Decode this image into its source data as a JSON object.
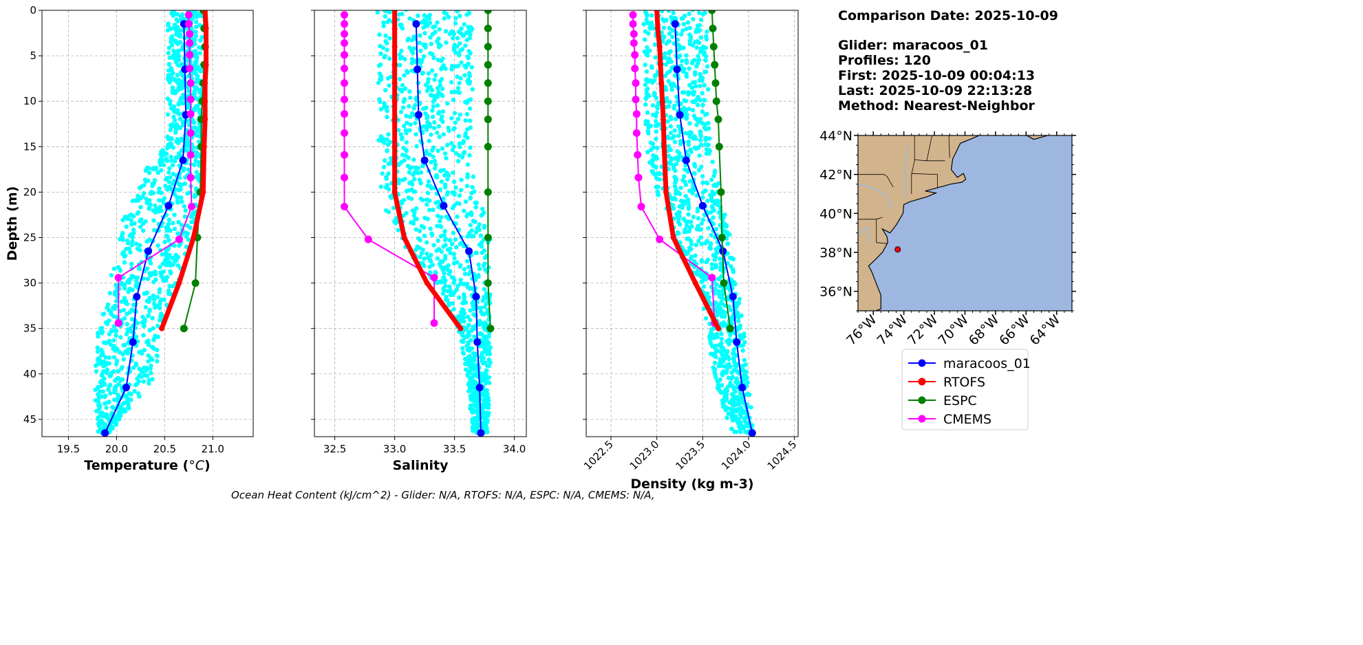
{
  "info": {
    "comparison_date": "Comparison Date: 2025-10-09",
    "glider": "Glider: maracoos_01",
    "profiles": "Profiles: 120",
    "first": "First: 2025-10-09 00:04:13",
    "last": "Last: 2025-10-09 22:13:28",
    "method": "Method: Nearest-Neighbor"
  },
  "footer": "Ocean Heat Content (kJ/cm^2) - Glider: N/A,  RTOFS: N/A,  ESPC: N/A,  CMEMS: N/A,",
  "legend": {
    "placement": "below-map",
    "items": [
      {
        "label": "maracoos_01",
        "color": "#0000ff"
      },
      {
        "label": "RTOFS",
        "color": "#ff0000"
      },
      {
        "label": "ESPC",
        "color": "#008000"
      },
      {
        "label": "CMEMS",
        "color": "#ff00ff"
      }
    ]
  },
  "chart_data": {
    "type": "line",
    "ylabel": "Depth (m)",
    "ylim": [
      46.9,
      0
    ],
    "yticks": [
      0,
      5,
      10,
      15,
      20,
      25,
      30,
      35,
      40,
      45
    ],
    "grid": true,
    "raw_color": "#00ffff",
    "panels": [
      {
        "name": "temperature",
        "xlabel_main": "Temperature (",
        "xlabel_unit": "°C",
        "xlabel_close": ")",
        "xlim": [
          19.225,
          21.42
        ],
        "xticks": [
          "19.5",
          "20.0",
          "20.5",
          "21.0"
        ],
        "tick_rotation": 0,
        "raw_envelope": [
          [
            0,
            20.53,
            20.9
          ],
          [
            15,
            20.53,
            20.9
          ],
          [
            17,
            20.32,
            20.9
          ],
          [
            20,
            20.22,
            20.88
          ],
          [
            23,
            20.05,
            20.85
          ],
          [
            27,
            20.0,
            20.75
          ],
          [
            31,
            19.9,
            20.62
          ],
          [
            35,
            19.8,
            20.45
          ],
          [
            40,
            19.78,
            20.42
          ],
          [
            43,
            19.78,
            20.2
          ],
          [
            46.5,
            19.8,
            19.92
          ]
        ],
        "series": [
          {
            "name": "maracoos_01",
            "depth": [
              1.5,
              6.5,
              11.5,
              16.5,
              21.5,
              26.5,
              31.5,
              36.5,
              41.5,
              46.5
            ],
            "values": [
              20.7,
              20.71,
              20.72,
              20.69,
              20.54,
              20.33,
              20.21,
              20.17,
              20.1,
              19.88
            ]
          },
          {
            "name": "RTOFS",
            "depth": [
              0,
              2,
              4,
              6,
              8,
              10,
              12,
              15,
              20,
              25,
              30,
              35
            ],
            "values": [
              20.92,
              20.93,
              20.93,
              20.93,
              20.92,
              20.92,
              20.92,
              20.91,
              20.9,
              20.8,
              20.65,
              20.47
            ]
          },
          {
            "name": "ESPC",
            "depth": [
              0,
              2,
              4,
              6,
              8,
              10,
              12,
              15,
              20,
              25,
              30,
              35
            ],
            "values": [
              20.9,
              20.91,
              20.92,
              20.91,
              20.9,
              20.89,
              20.88,
              20.88,
              20.87,
              20.84,
              20.82,
              20.7
            ]
          },
          {
            "name": "CMEMS",
            "depth": [
              0.5,
              1.5,
              2.6,
              3.6,
              4.9,
              6.4,
              8.0,
              9.8,
              11.4,
              13.5,
              15.9,
              18.4,
              21.6,
              25.2,
              29.4,
              34.4
            ],
            "values": [
              20.75,
              20.75,
              20.76,
              20.76,
              20.76,
              20.76,
              20.77,
              20.77,
              20.77,
              20.77,
              20.77,
              20.77,
              20.78,
              20.65,
              20.02,
              20.02
            ]
          }
        ]
      },
      {
        "name": "salinity",
        "xlabel_main": "Salinity",
        "xlim": [
          32.33,
          34.1
        ],
        "xticks": [
          "32.5",
          "33.0",
          "33.5",
          "34.0"
        ],
        "tick_rotation": 0,
        "raw_envelope": [
          [
            0,
            32.85,
            33.65
          ],
          [
            18,
            32.87,
            33.65
          ],
          [
            21,
            32.9,
            33.72
          ],
          [
            25,
            33.0,
            33.8
          ],
          [
            28,
            33.2,
            33.8
          ],
          [
            31,
            33.4,
            33.8
          ],
          [
            36,
            33.55,
            33.8
          ],
          [
            40,
            33.6,
            33.8
          ],
          [
            46.5,
            33.65,
            33.78
          ]
        ],
        "series": [
          {
            "name": "maracoos_01",
            "depth": [
              1.5,
              6.5,
              11.5,
              16.5,
              21.5,
              26.5,
              31.5,
              36.5,
              41.5,
              46.5
            ],
            "values": [
              33.18,
              33.19,
              33.2,
              33.25,
              33.41,
              33.62,
              33.68,
              33.69,
              33.71,
              33.72
            ]
          },
          {
            "name": "RTOFS",
            "depth": [
              0,
              2,
              4,
              6,
              8,
              10,
              12,
              15,
              20,
              25,
              30,
              35
            ],
            "values": [
              33.0,
              33.0,
              33.0,
              33.0,
              33.0,
              33.0,
              33.0,
              33.0,
              33.0,
              33.08,
              33.27,
              33.55
            ]
          },
          {
            "name": "ESPC",
            "depth": [
              0,
              2,
              4,
              6,
              8,
              10,
              12,
              15,
              20,
              25,
              30,
              35
            ],
            "values": [
              33.78,
              33.78,
              33.78,
              33.78,
              33.78,
              33.78,
              33.78,
              33.78,
              33.78,
              33.78,
              33.78,
              33.8
            ]
          },
          {
            "name": "CMEMS",
            "depth": [
              0.5,
              1.5,
              2.6,
              3.6,
              4.9,
              6.4,
              8.0,
              9.8,
              11.4,
              13.5,
              15.9,
              18.4,
              21.6,
              25.2,
              29.4,
              34.4
            ],
            "values": [
              32.58,
              32.58,
              32.58,
              32.58,
              32.58,
              32.58,
              32.58,
              32.58,
              32.58,
              32.58,
              32.58,
              32.58,
              32.58,
              32.78,
              33.33,
              33.33
            ]
          }
        ]
      },
      {
        "name": "density",
        "xlabel_main": "Density (kg m-3)",
        "xlim": [
          1022.23,
          1024.54
        ],
        "xticks": [
          "1022.5",
          "1023.0",
          "1023.5",
          "1024.0",
          "1024.5"
        ],
        "tick_rotation": -45,
        "raw_envelope": [
          [
            0,
            1022.85,
            1023.55
          ],
          [
            15,
            1022.88,
            1023.58
          ],
          [
            18,
            1022.95,
            1023.65
          ],
          [
            22,
            1023.05,
            1023.75
          ],
          [
            26,
            1023.2,
            1023.82
          ],
          [
            30,
            1023.45,
            1023.88
          ],
          [
            35,
            1023.55,
            1023.95
          ],
          [
            40,
            1023.62,
            1024.0
          ],
          [
            46.5,
            1023.8,
            1024.05
          ]
        ],
        "series": [
          {
            "name": "maracoos_01",
            "depth": [
              1.5,
              6.5,
              11.5,
              16.5,
              21.5,
              26.5,
              31.5,
              36.5,
              41.5,
              46.5
            ],
            "values": [
              1023.2,
              1023.22,
              1023.25,
              1023.32,
              1023.5,
              1023.72,
              1023.83,
              1023.87,
              1023.93,
              1024.04
            ]
          },
          {
            "name": "RTOFS",
            "depth": [
              0,
              2,
              4,
              6,
              8,
              10,
              12,
              15,
              20,
              25,
              30,
              35
            ],
            "values": [
              1023.0,
              1023.01,
              1023.03,
              1023.04,
              1023.05,
              1023.06,
              1023.07,
              1023.08,
              1023.1,
              1023.18,
              1023.42,
              1023.67
            ]
          },
          {
            "name": "ESPC",
            "depth": [
              0,
              2,
              4,
              6,
              8,
              10,
              12,
              15,
              20,
              25,
              30,
              35
            ],
            "values": [
              1023.6,
              1023.61,
              1023.62,
              1023.63,
              1023.64,
              1023.65,
              1023.67,
              1023.68,
              1023.7,
              1023.71,
              1023.73,
              1023.8
            ]
          },
          {
            "name": "CMEMS",
            "depth": [
              0.5,
              1.5,
              2.6,
              3.6,
              4.9,
              6.4,
              8.0,
              9.8,
              11.4,
              13.5,
              15.9,
              18.4,
              21.6,
              25.2,
              29.4,
              34.4
            ],
            "values": [
              1022.74,
              1022.74,
              1022.75,
              1022.75,
              1022.76,
              1022.76,
              1022.77,
              1022.77,
              1022.78,
              1022.78,
              1022.79,
              1022.8,
              1022.83,
              1023.03,
              1023.6,
              1023.63
            ]
          }
        ]
      }
    ],
    "map": {
      "lon_range": [
        -77,
        -63
      ],
      "lat_range": [
        35,
        44
      ],
      "lat_ticks": [
        "36°N",
        "38°N",
        "40°N",
        "42°N",
        "44°N"
      ],
      "lat_tick_values": [
        36,
        38,
        40,
        42,
        44
      ],
      "lon_ticks": [
        "76°W",
        "74°W",
        "72°W",
        "70°W",
        "68°W",
        "66°W",
        "64°W"
      ],
      "lon_tick_values": [
        -76,
        -74,
        -72,
        -70,
        -68,
        -66,
        -64
      ],
      "ocean_color": "#9db7e1",
      "land_color": "#d2b48c",
      "glider_position": [
        -74.4,
        38.15
      ]
    }
  }
}
